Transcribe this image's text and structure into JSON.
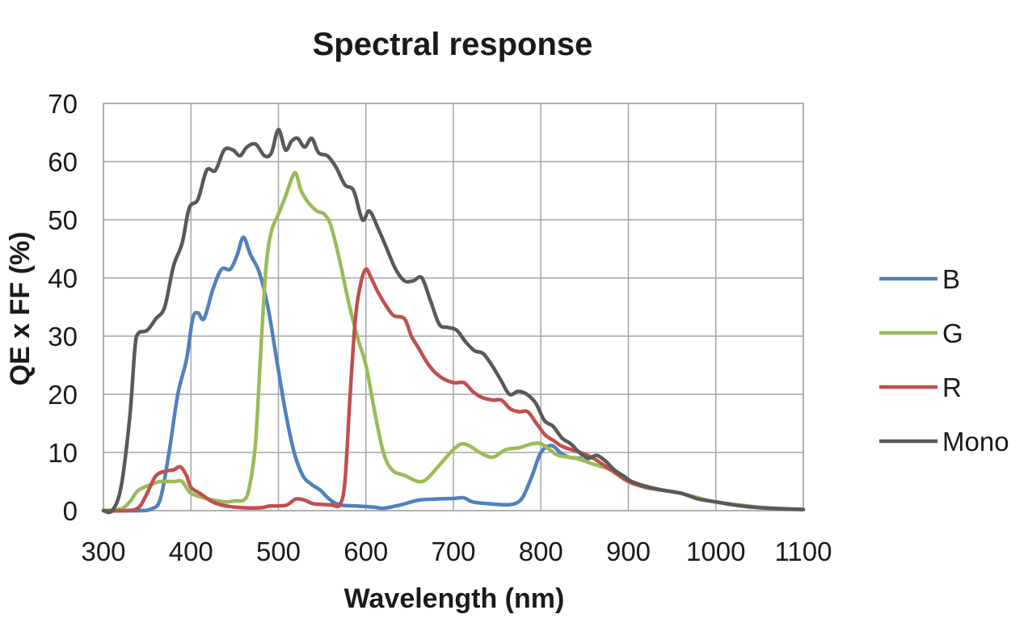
{
  "chart_data": {
    "type": "line",
    "title": "Spectral response",
    "xlabel": "Wavelength (nm)",
    "ylabel": "QE x FF (%)",
    "xlim": [
      300,
      1100
    ],
    "ylim": [
      0,
      70
    ],
    "x_ticks": [
      300,
      400,
      500,
      600,
      700,
      800,
      900,
      1000,
      1100
    ],
    "y_ticks": [
      0,
      10,
      20,
      30,
      40,
      50,
      60,
      70
    ],
    "grid": true,
    "legend_position": "right",
    "series": [
      {
        "name": "B",
        "color": "#4f81bd",
        "points": [
          [
            300,
            0
          ],
          [
            340,
            0
          ],
          [
            355,
            0.3
          ],
          [
            365,
            2
          ],
          [
            375,
            10
          ],
          [
            385,
            20
          ],
          [
            395,
            26
          ],
          [
            402,
            33
          ],
          [
            408,
            34
          ],
          [
            415,
            33
          ],
          [
            425,
            38
          ],
          [
            435,
            41.5
          ],
          [
            445,
            41.5
          ],
          [
            453,
            44
          ],
          [
            460,
            47
          ],
          [
            468,
            44
          ],
          [
            478,
            41
          ],
          [
            488,
            35
          ],
          [
            498,
            26
          ],
          [
            508,
            17
          ],
          [
            518,
            10
          ],
          [
            528,
            6
          ],
          [
            538,
            4.5
          ],
          [
            548,
            3.5
          ],
          [
            558,
            2
          ],
          [
            570,
            1
          ],
          [
            590,
            0.8
          ],
          [
            610,
            0.6
          ],
          [
            620,
            0.4
          ],
          [
            640,
            1
          ],
          [
            660,
            1.8
          ],
          [
            680,
            2
          ],
          [
            700,
            2.1
          ],
          [
            712,
            2.2
          ],
          [
            722,
            1.5
          ],
          [
            740,
            1.2
          ],
          [
            760,
            1
          ],
          [
            772,
            1.3
          ],
          [
            780,
            2.5
          ],
          [
            790,
            6
          ],
          [
            800,
            10
          ],
          [
            812,
            11.2
          ],
          [
            822,
            10
          ],
          [
            832,
            9.2
          ],
          [
            845,
            9
          ]
        ]
      },
      {
        "name": "G",
        "color": "#9bbb59",
        "points": [
          [
            300,
            0
          ],
          [
            320,
            0.3
          ],
          [
            330,
            1.5
          ],
          [
            340,
            3.5
          ],
          [
            355,
            4.5
          ],
          [
            365,
            5
          ],
          [
            380,
            5
          ],
          [
            390,
            5
          ],
          [
            400,
            3
          ],
          [
            420,
            2
          ],
          [
            440,
            1.5
          ],
          [
            450,
            1.7
          ],
          [
            462,
            2
          ],
          [
            468,
            5
          ],
          [
            474,
            12
          ],
          [
            480,
            28
          ],
          [
            486,
            42
          ],
          [
            492,
            48
          ],
          [
            500,
            51
          ],
          [
            508,
            54
          ],
          [
            515,
            57
          ],
          [
            520,
            58
          ],
          [
            526,
            55
          ],
          [
            534,
            53
          ],
          [
            544,
            51.5
          ],
          [
            552,
            51
          ],
          [
            560,
            49
          ],
          [
            570,
            43
          ],
          [
            580,
            36
          ],
          [
            590,
            30
          ],
          [
            600,
            25
          ],
          [
            610,
            17
          ],
          [
            620,
            10
          ],
          [
            630,
            7
          ],
          [
            645,
            6
          ],
          [
            660,
            5
          ],
          [
            670,
            5.5
          ],
          [
            685,
            8
          ],
          [
            700,
            10.5
          ],
          [
            710,
            11.5
          ],
          [
            720,
            11
          ],
          [
            730,
            10
          ],
          [
            745,
            9.2
          ],
          [
            760,
            10.5
          ],
          [
            775,
            10.8
          ],
          [
            790,
            11.5
          ],
          [
            800,
            11.5
          ],
          [
            810,
            10.5
          ],
          [
            820,
            9.5
          ],
          [
            840,
            9
          ],
          [
            860,
            8
          ],
          [
            880,
            7
          ],
          [
            900,
            5
          ],
          [
            920,
            4
          ],
          [
            940,
            3.5
          ],
          [
            960,
            3
          ],
          [
            980,
            2.2
          ],
          [
            1000,
            1.5
          ],
          [
            1050,
            0.6
          ],
          [
            1100,
            0.2
          ]
        ]
      },
      {
        "name": "R",
        "color": "#c0504d",
        "points": [
          [
            300,
            0
          ],
          [
            325,
            0
          ],
          [
            340,
            0.5
          ],
          [
            350,
            3
          ],
          [
            360,
            6
          ],
          [
            372,
            6.8
          ],
          [
            380,
            7
          ],
          [
            388,
            7.5
          ],
          [
            395,
            6
          ],
          [
            400,
            4
          ],
          [
            410,
            3
          ],
          [
            425,
            1.5
          ],
          [
            440,
            0.8
          ],
          [
            460,
            0.5
          ],
          [
            480,
            0.5
          ],
          [
            490,
            0.8
          ],
          [
            500,
            0.8
          ],
          [
            510,
            1
          ],
          [
            520,
            2
          ],
          [
            530,
            1.8
          ],
          [
            540,
            1.2
          ],
          [
            560,
            1
          ],
          [
            570,
            1
          ],
          [
            576,
            5
          ],
          [
            582,
            20
          ],
          [
            588,
            33
          ],
          [
            594,
            39
          ],
          [
            600,
            41.5
          ],
          [
            606,
            40
          ],
          [
            614,
            37.5
          ],
          [
            624,
            35
          ],
          [
            632,
            33.5
          ],
          [
            644,
            33
          ],
          [
            652,
            30
          ],
          [
            660,
            28
          ],
          [
            672,
            25
          ],
          [
            685,
            23
          ],
          [
            700,
            22
          ],
          [
            712,
            22
          ],
          [
            722,
            20.5
          ],
          [
            732,
            19.5
          ],
          [
            745,
            19
          ],
          [
            755,
            19
          ],
          [
            765,
            17.5
          ],
          [
            775,
            17
          ],
          [
            785,
            17
          ],
          [
            795,
            15
          ],
          [
            805,
            13
          ],
          [
            815,
            12
          ],
          [
            825,
            11
          ],
          [
            845,
            10
          ],
          [
            860,
            9
          ],
          [
            880,
            7
          ],
          [
            900,
            5
          ],
          [
            920,
            4
          ],
          [
            940,
            3.5
          ],
          [
            960,
            3
          ]
        ]
      },
      {
        "name": "Mono",
        "color": "#595959",
        "points": [
          [
            300,
            0
          ],
          [
            310,
            0
          ],
          [
            320,
            4
          ],
          [
            330,
            16
          ],
          [
            336,
            28
          ],
          [
            340,
            30.5
          ],
          [
            350,
            31
          ],
          [
            360,
            33
          ],
          [
            370,
            35
          ],
          [
            380,
            42
          ],
          [
            390,
            46
          ],
          [
            398,
            52
          ],
          [
            408,
            53.5
          ],
          [
            418,
            58.5
          ],
          [
            428,
            58.5
          ],
          [
            438,
            62
          ],
          [
            448,
            62
          ],
          [
            456,
            61
          ],
          [
            464,
            62.5
          ],
          [
            474,
            63
          ],
          [
            484,
            61
          ],
          [
            492,
            61.5
          ],
          [
            500,
            65.5
          ],
          [
            508,
            62
          ],
          [
            515,
            63.5
          ],
          [
            522,
            64
          ],
          [
            530,
            62.5
          ],
          [
            538,
            64
          ],
          [
            546,
            61.5
          ],
          [
            556,
            61
          ],
          [
            566,
            59
          ],
          [
            576,
            56
          ],
          [
            586,
            55
          ],
          [
            596,
            50
          ],
          [
            604,
            51.5
          ],
          [
            614,
            48.5
          ],
          [
            624,
            45
          ],
          [
            634,
            41.5
          ],
          [
            644,
            39.5
          ],
          [
            654,
            39.5
          ],
          [
            664,
            40
          ],
          [
            674,
            36
          ],
          [
            684,
            32
          ],
          [
            694,
            31.5
          ],
          [
            704,
            31
          ],
          [
            714,
            29
          ],
          [
            724,
            27.5
          ],
          [
            734,
            27
          ],
          [
            744,
            25
          ],
          [
            754,
            22.5
          ],
          [
            764,
            20
          ],
          [
            774,
            20.5
          ],
          [
            784,
            20
          ],
          [
            794,
            18.5
          ],
          [
            804,
            15.5
          ],
          [
            814,
            14.5
          ],
          [
            824,
            12.5
          ],
          [
            834,
            11.5
          ],
          [
            844,
            10
          ],
          [
            854,
            9
          ],
          [
            864,
            9.5
          ],
          [
            874,
            8.5
          ],
          [
            884,
            7
          ],
          [
            894,
            6
          ],
          [
            904,
            5
          ],
          [
            920,
            4.2
          ],
          [
            940,
            3.5
          ],
          [
            960,
            3
          ],
          [
            980,
            2
          ],
          [
            1000,
            1.5
          ],
          [
            1020,
            1
          ],
          [
            1050,
            0.5
          ],
          [
            1100,
            0.2
          ]
        ]
      }
    ]
  }
}
